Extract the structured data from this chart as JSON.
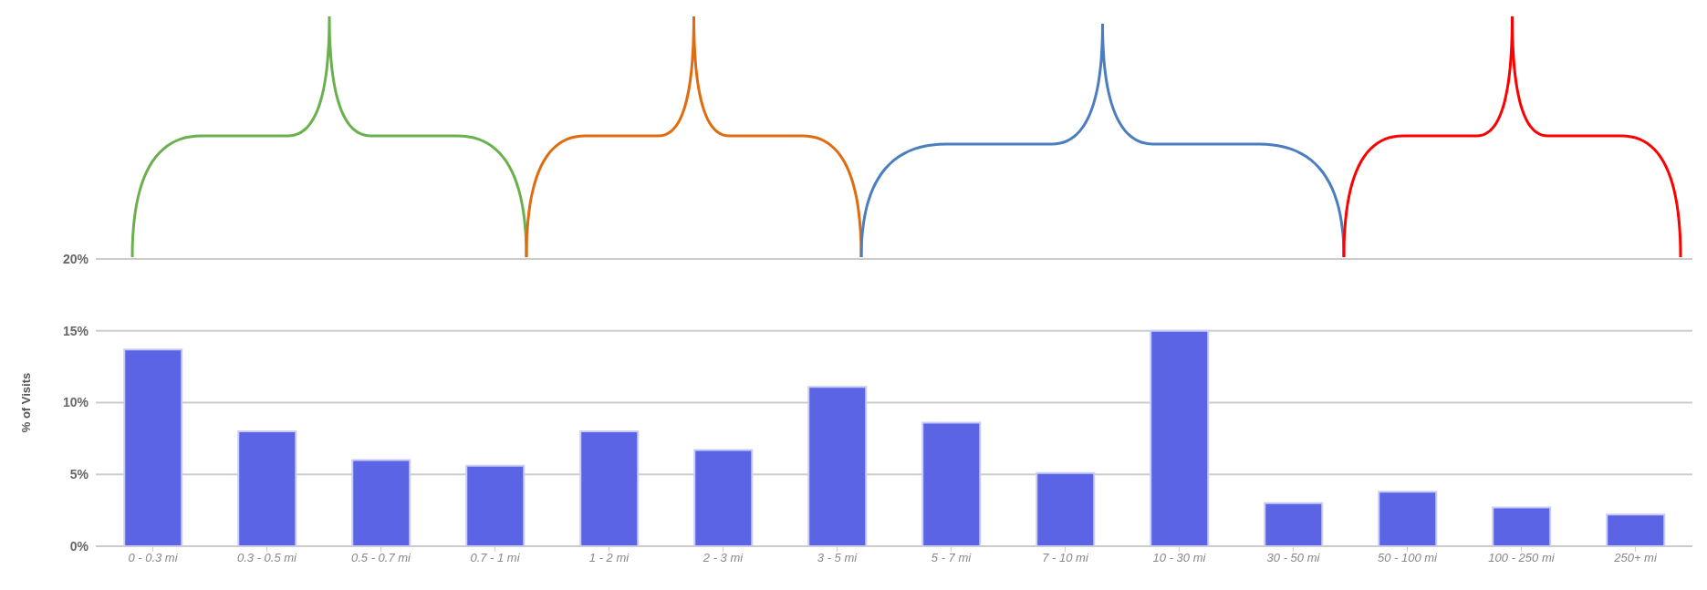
{
  "chart_data": {
    "type": "bar",
    "ylabel": "% of Visits",
    "categories": [
      "0 - 0.3 mi",
      "0.3 - 0.5 mi",
      "0.5 - 0.7 mi",
      "0.7 - 1 mi",
      "1 - 2 mi",
      "2 - 3 mi",
      "3 - 5 mi",
      "5 - 7 mi",
      "7 - 10 mi",
      "10 - 30 mi",
      "30 - 50 mi",
      "50 - 100 mi",
      "100 - 250 mi",
      "250+ mi"
    ],
    "values": [
      13.7,
      8.0,
      6.0,
      5.6,
      8.0,
      6.7,
      11.1,
      8.6,
      5.1,
      15.0,
      3.0,
      3.8,
      2.7,
      2.2
    ],
    "color": "#5c64e6",
    "ylim": [
      0,
      20
    ],
    "yticks": [
      {
        "value": 0,
        "label": "0%"
      },
      {
        "value": 5,
        "label": "5%"
      },
      {
        "value": 10,
        "label": "10%"
      },
      {
        "value": 15,
        "label": "15%"
      },
      {
        "value": 20,
        "label": "20%"
      }
    ],
    "grid": "y"
  }
}
